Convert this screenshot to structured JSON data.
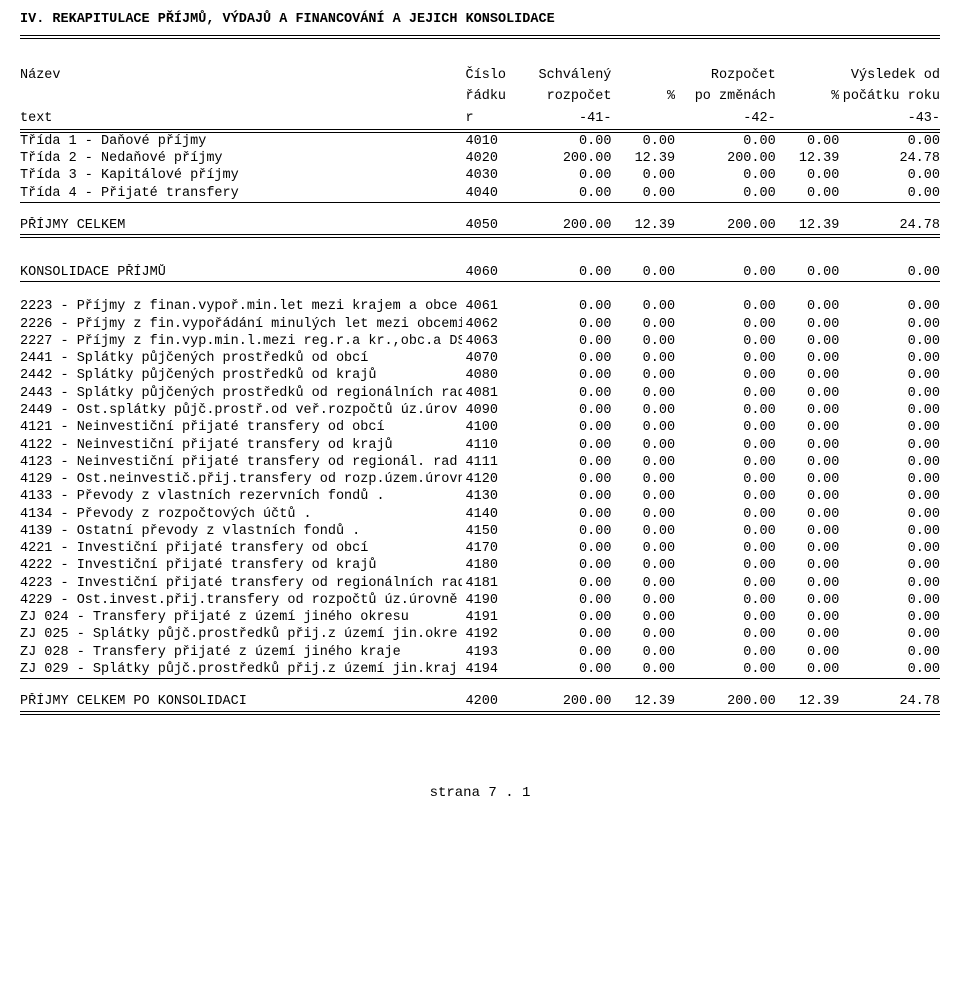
{
  "title": "IV. REKAPITULACE PŘÍJMŮ, VÝDAJŮ A FINANCOVÁNÍ A JEJICH KONSOLIDACE",
  "header": {
    "name": [
      "Název",
      "",
      "text"
    ],
    "cislo": [
      "Číslo",
      "řádku",
      "r"
    ],
    "sch": [
      "Schválený",
      "rozpočet",
      "-41-"
    ],
    "pct1": [
      "",
      "%",
      ""
    ],
    "po": [
      "Rozpočet",
      "po změnách",
      "-42-"
    ],
    "pct2": [
      "",
      "%",
      ""
    ],
    "vysl": [
      "Výsledek od",
      "počátku roku",
      "-43-"
    ]
  },
  "section1": [
    {
      "name": "Třída 1 - Daňové příjmy",
      "cislo": "4010",
      "sch": "0.00",
      "pct1": "0.00",
      "po": "0.00",
      "pct2": "0.00",
      "vysl": "0.00"
    },
    {
      "name": "Třída 2 - Nedaňové příjmy",
      "cislo": "4020",
      "sch": "200.00",
      "pct1": "12.39",
      "po": "200.00",
      "pct2": "12.39",
      "vysl": "24.78"
    },
    {
      "name": "Třída 3 - Kapitálové příjmy",
      "cislo": "4030",
      "sch": "0.00",
      "pct1": "0.00",
      "po": "0.00",
      "pct2": "0.00",
      "vysl": "0.00"
    },
    {
      "name": "Třída 4 - Přijaté transfery",
      "cislo": "4040",
      "sch": "0.00",
      "pct1": "0.00",
      "po": "0.00",
      "pct2": "0.00",
      "vysl": "0.00"
    }
  ],
  "section1_total": {
    "name": "PŘÍJMY CELKEM",
    "cislo": "4050",
    "sch": "200.00",
    "pct1": "12.39",
    "po": "200.00",
    "pct2": "12.39",
    "vysl": "24.78"
  },
  "section2_header": {
    "name": "KONSOLIDACE PŘÍJMŮ",
    "cislo": "4060",
    "sch": "0.00",
    "pct1": "0.00",
    "po": "0.00",
    "pct2": "0.00",
    "vysl": "0.00"
  },
  "section2": [
    {
      "name": "2223 - Příjmy z finan.vypoř.min.let mezi krajem a obce",
      "cislo": "4061",
      "sch": "0.00",
      "pct1": "0.00",
      "po": "0.00",
      "pct2": "0.00",
      "vysl": "0.00"
    },
    {
      "name": "2226 - Příjmy z fin.vypořádání minulých let mezi obcemi",
      "cislo": "4062",
      "sch": "0.00",
      "pct1": "0.00",
      "po": "0.00",
      "pct2": "0.00",
      "vysl": "0.00"
    },
    {
      "name": "2227 - Příjmy z fin.vyp.min.l.mezi reg.r.a kr.,obc.a DSO",
      "cislo": "4063",
      "sch": "0.00",
      "pct1": "0.00",
      "po": "0.00",
      "pct2": "0.00",
      "vysl": "0.00"
    },
    {
      "name": "2441 - Splátky půjčených prostředků od obcí",
      "cislo": "4070",
      "sch": "0.00",
      "pct1": "0.00",
      "po": "0.00",
      "pct2": "0.00",
      "vysl": "0.00"
    },
    {
      "name": "2442 - Splátky půjčených prostředků od krajů",
      "cislo": "4080",
      "sch": "0.00",
      "pct1": "0.00",
      "po": "0.00",
      "pct2": "0.00",
      "vysl": "0.00"
    },
    {
      "name": "2443 - Splátky půjčených prostředků od regionálních rad",
      "cislo": "4081",
      "sch": "0.00",
      "pct1": "0.00",
      "po": "0.00",
      "pct2": "0.00",
      "vysl": "0.00"
    },
    {
      "name": "2449 - Ost.splátky půjč.prostř.od veř.rozpočtů úz.úrov",
      "cislo": "4090",
      "sch": "0.00",
      "pct1": "0.00",
      "po": "0.00",
      "pct2": "0.00",
      "vysl": "0.00"
    },
    {
      "name": "4121 - Neinvestiční přijaté transfery od obcí",
      "cislo": "4100",
      "sch": "0.00",
      "pct1": "0.00",
      "po": "0.00",
      "pct2": "0.00",
      "vysl": "0.00"
    },
    {
      "name": "4122 - Neinvestiční přijaté transfery od krajů",
      "cislo": "4110",
      "sch": "0.00",
      "pct1": "0.00",
      "po": "0.00",
      "pct2": "0.00",
      "vysl": "0.00"
    },
    {
      "name": "4123 - Neinvestiční přijaté transfery od regionál. rad",
      "cislo": "4111",
      "sch": "0.00",
      "pct1": "0.00",
      "po": "0.00",
      "pct2": "0.00",
      "vysl": "0.00"
    },
    {
      "name": "4129 - Ost.neinvestič.přij.transfery od rozp.územ.úrovně",
      "cislo": "4120",
      "sch": "0.00",
      "pct1": "0.00",
      "po": "0.00",
      "pct2": "0.00",
      "vysl": "0.00"
    },
    {
      "name": "4133 - Převody z vlastních rezervních fondů            .",
      "cislo": "4130",
      "sch": "0.00",
      "pct1": "0.00",
      "po": "0.00",
      "pct2": "0.00",
      "vysl": "0.00"
    },
    {
      "name": "4134 - Převody z rozpočtových účtů                     .",
      "cislo": "4140",
      "sch": "0.00",
      "pct1": "0.00",
      "po": "0.00",
      "pct2": "0.00",
      "vysl": "0.00"
    },
    {
      "name": "4139 - Ostatní převody z vlastních fondů               .",
      "cislo": "4150",
      "sch": "0.00",
      "pct1": "0.00",
      "po": "0.00",
      "pct2": "0.00",
      "vysl": "0.00"
    },
    {
      "name": "4221 - Investiční přijaté transfery od obcí",
      "cislo": "4170",
      "sch": "0.00",
      "pct1": "0.00",
      "po": "0.00",
      "pct2": "0.00",
      "vysl": "0.00"
    },
    {
      "name": "4222 - Investiční přijaté transfery od krajů",
      "cislo": "4180",
      "sch": "0.00",
      "pct1": "0.00",
      "po": "0.00",
      "pct2": "0.00",
      "vysl": "0.00"
    },
    {
      "name": "4223 - Investiční přijaté transfery od regionálních rad",
      "cislo": "4181",
      "sch": "0.00",
      "pct1": "0.00",
      "po": "0.00",
      "pct2": "0.00",
      "vysl": "0.00"
    },
    {
      "name": "4229 - Ost.invest.přij.transfery od rozpočtů úz.úrovně",
      "cislo": "4190",
      "sch": "0.00",
      "pct1": "0.00",
      "po": "0.00",
      "pct2": "0.00",
      "vysl": "0.00"
    },
    {
      "name": "ZJ 024 - Transfery přijaté z území jiného okresu",
      "cislo": "4191",
      "sch": "0.00",
      "pct1": "0.00",
      "po": "0.00",
      "pct2": "0.00",
      "vysl": "0.00"
    },
    {
      "name": "ZJ 025 - Splátky půjč.prostředků přij.z území jin.okre",
      "cislo": "4192",
      "sch": "0.00",
      "pct1": "0.00",
      "po": "0.00",
      "pct2": "0.00",
      "vysl": "0.00"
    },
    {
      "name": "ZJ 028 - Transfery přijaté z území jiného kraje",
      "cislo": "4193",
      "sch": "0.00",
      "pct1": "0.00",
      "po": "0.00",
      "pct2": "0.00",
      "vysl": "0.00"
    },
    {
      "name": "ZJ 029 - Splátky půjč.prostředků přij.z území jin.kraj",
      "cislo": "4194",
      "sch": "0.00",
      "pct1": "0.00",
      "po": "0.00",
      "pct2": "0.00",
      "vysl": "0.00"
    }
  ],
  "section2_total": {
    "name": "PŘÍJMY CELKEM PO KONSOLIDACI",
    "cislo": "4200",
    "sch": "200.00",
    "pct1": "12.39",
    "po": "200.00",
    "pct2": "12.39",
    "vysl": "24.78"
  },
  "footer": "strana 7 . 1"
}
